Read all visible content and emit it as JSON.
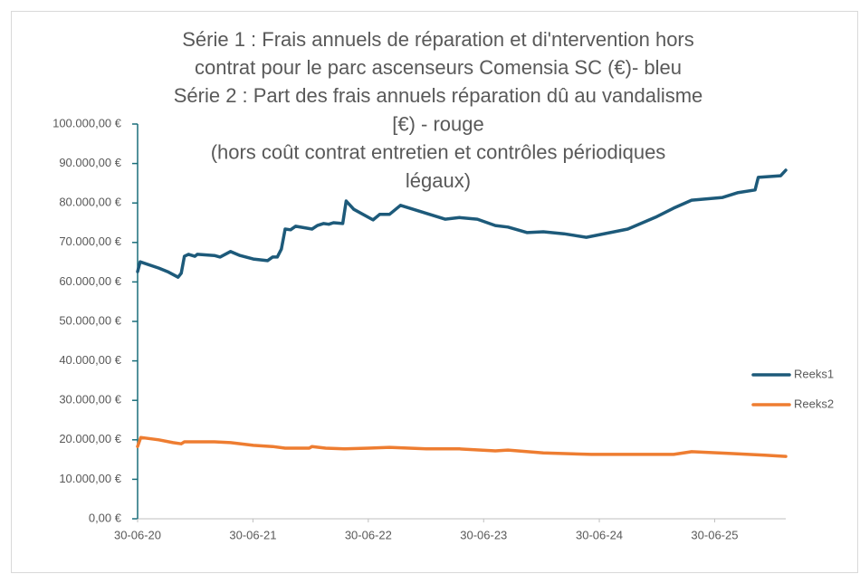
{
  "chart_data": {
    "type": "line",
    "title": [
      "Série 1 : Frais annuels de réparation et di'ntervention hors",
      "contrat pour le parc ascenseurs Comensia SC (€)- bleu",
      "Série 2 : Part des frais annuels réparation dû au vandalisme",
      "[€) - rouge",
      "(hors coût contrat entretien et contrôles périodiques",
      "légaux)"
    ],
    "xlim": [
      "2020-06-30",
      "2026-02-10"
    ],
    "xticks": [
      {
        "value": "2020-06-30",
        "label": "30-06-20"
      },
      {
        "value": "2021-06-30",
        "label": "30-06-21"
      },
      {
        "value": "2022-06-30",
        "label": "30-06-22"
      },
      {
        "value": "2023-06-30",
        "label": "30-06-23"
      },
      {
        "value": "2024-06-30",
        "label": "30-06-24"
      },
      {
        "value": "2025-06-30",
        "label": "30-06-25"
      }
    ],
    "ylim": [
      0,
      100000
    ],
    "yticks": [
      {
        "value": 0,
        "label": "0,00 €"
      },
      {
        "value": 10000,
        "label": "10.000,00 €"
      },
      {
        "value": 20000,
        "label": "20.000,00 €"
      },
      {
        "value": 30000,
        "label": "30.000,00 €"
      },
      {
        "value": 40000,
        "label": "40.000,00 €"
      },
      {
        "value": 50000,
        "label": "50.000,00 €"
      },
      {
        "value": 60000,
        "label": "60.000,00 €"
      },
      {
        "value": 70000,
        "label": "70.000,00 €"
      },
      {
        "value": 80000,
        "label": "80.000,00 €"
      },
      {
        "value": 90000,
        "label": "90.000,00 €"
      },
      {
        "value": 100000,
        "label": "100.000,00 €"
      }
    ],
    "grid": false,
    "legend": "right",
    "series": [
      {
        "name": "Reeks1",
        "color": "#1d5a7a",
        "x": [
          "2020-06-30",
          "2020-07-08",
          "2020-09-05",
          "2020-10-03",
          "2020-11-05",
          "2020-11-15",
          "2020-11-25",
          "2020-12-08",
          "2020-12-28",
          "2021-01-05",
          "2021-02-28",
          "2021-03-18",
          "2021-04-20",
          "2021-05-20",
          "2021-07-01",
          "2021-08-15",
          "2021-08-31",
          "2021-09-15",
          "2021-09-28",
          "2021-10-10",
          "2021-10-27",
          "2021-11-12",
          "2022-01-03",
          "2022-01-20",
          "2022-02-08",
          "2022-02-25",
          "2022-03-12",
          "2022-04-10",
          "2022-04-21",
          "2022-05-15",
          "2022-07-15",
          "2022-08-05",
          "2022-09-05",
          "2022-10-10",
          "2023-02-28",
          "2023-04-15",
          "2023-06-10",
          "2023-08-06",
          "2023-09-15",
          "2023-11-15",
          "2024-01-05",
          "2024-03-10",
          "2024-05-20",
          "2024-09-28",
          "2024-12-25",
          "2025-02-20",
          "2025-04-18",
          "2025-07-25",
          "2025-09-10",
          "2025-11-05",
          "2025-11-15",
          "2026-01-25",
          "2026-02-10"
        ],
        "values": [
          62600,
          65100,
          63500,
          62600,
          61200,
          62200,
          66500,
          67000,
          66500,
          67000,
          66700,
          66300,
          67700,
          66700,
          65800,
          65400,
          66300,
          66300,
          68300,
          73400,
          73200,
          74100,
          73400,
          74300,
          74800,
          74600,
          75000,
          74800,
          80500,
          78400,
          75700,
          77100,
          77100,
          79400,
          75900,
          76300,
          75900,
          74300,
          73900,
          72500,
          72700,
          72200,
          71300,
          73400,
          76400,
          78700,
          80700,
          81400,
          82600,
          83300,
          86500,
          86900,
          88300
        ]
      },
      {
        "name": "Reeks2",
        "color": "#ee7d31",
        "x": [
          "2020-06-30",
          "2020-07-10",
          "2020-09-05",
          "2020-10-20",
          "2020-11-15",
          "2020-11-25",
          "2021-01-05",
          "2021-02-28",
          "2021-04-20",
          "2021-07-01",
          "2021-08-31",
          "2021-10-10",
          "2021-12-25",
          "2022-01-03",
          "2022-02-15",
          "2022-04-15",
          "2022-06-30",
          "2022-09-05",
          "2022-12-31",
          "2023-04-15",
          "2023-08-06",
          "2023-09-15",
          "2024-01-05",
          "2024-06-05",
          "2024-10-15",
          "2025-02-20",
          "2025-04-18",
          "2025-08-05",
          "2025-12-05",
          "2026-02-10"
        ],
        "values": [
          18300,
          20600,
          20000,
          19300,
          19000,
          19500,
          19500,
          19500,
          19300,
          18600,
          18300,
          17900,
          17900,
          18300,
          17900,
          17700,
          17900,
          18100,
          17700,
          17700,
          17200,
          17400,
          16700,
          16300,
          16300,
          16300,
          17000,
          16600,
          16100,
          15800
        ]
      }
    ]
  }
}
